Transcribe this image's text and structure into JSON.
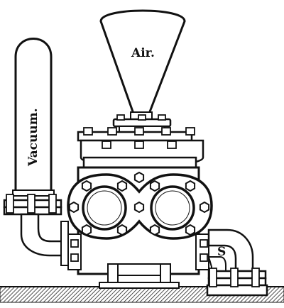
{
  "labels": {
    "air": "Air.",
    "vacuum": "Vacuum.",
    "suction": "S"
  },
  "colors": {
    "ink": "#111111",
    "paper": "#ffffff"
  }
}
